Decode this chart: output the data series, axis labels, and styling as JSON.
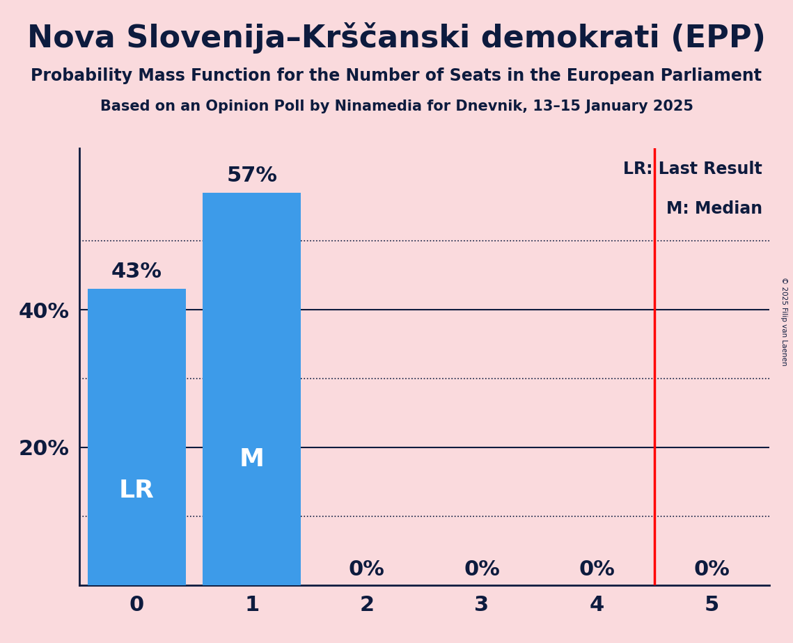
{
  "title": "Nova Slovenija–Krščanski demokrati (EPP)",
  "subtitle1": "Probability Mass Function for the Number of Seats in the European Parliament",
  "subtitle2": "Based on an Opinion Poll by Ninamedia for Dnevnik, 13–15 January 2025",
  "categories": [
    0,
    1,
    2,
    3,
    4,
    5
  ],
  "values": [
    0.43,
    0.57,
    0.0,
    0.0,
    0.0,
    0.0
  ],
  "bar_color": "#3d9be9",
  "background_color": "#fadadd",
  "bar_labels": [
    "43%",
    "57%",
    "0%",
    "0%",
    "0%",
    "0%"
  ],
  "bar_inner_labels": [
    "LR",
    "M",
    "",
    "",
    "",
    ""
  ],
  "lr_line_x": 4.5,
  "lr_label": "LR: Last Result",
  "m_label": "M: Median",
  "ylabel_ticks": [
    0.2,
    0.4
  ],
  "ylabel_tick_labels": [
    "20%",
    "40%"
  ],
  "ylim": [
    0,
    0.635
  ],
  "xlim": [
    -0.5,
    5.5
  ],
  "title_color": "#0d1b3e",
  "text_color": "#0d1b3e",
  "axis_color": "#0d1b3e",
  "grid_color_solid": "#0d1b3e",
  "grid_color_dotted": "#0d1b3e",
  "solid_gridlines": [
    0.2,
    0.4
  ],
  "dotted_gridlines": [
    0.1,
    0.3,
    0.5
  ],
  "copyright_text": "© 2025 Filip van Laenen"
}
